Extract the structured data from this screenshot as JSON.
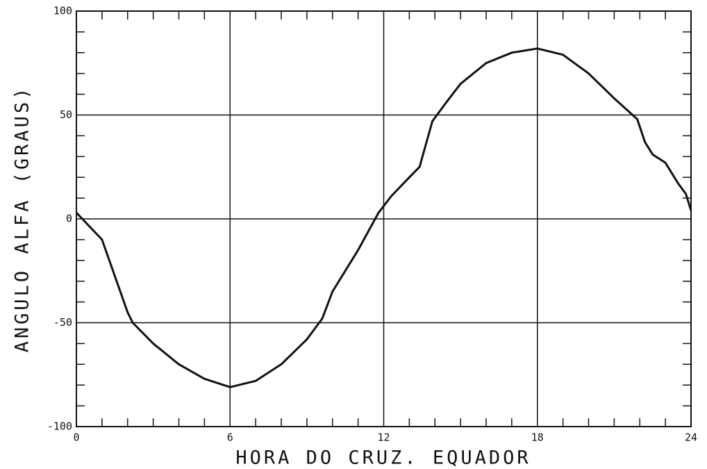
{
  "chart_data": {
    "type": "line",
    "xlabel": "HORA DO CRUZ. EQUADOR",
    "ylabel": "ANGULO ALFA (GRAUS)",
    "xlim": [
      0,
      24
    ],
    "ylim": [
      -100,
      100
    ],
    "xticks": [
      0,
      6,
      12,
      18,
      24
    ],
    "yticks": [
      -100,
      -50,
      0,
      50,
      100
    ],
    "xminorticks": [
      1,
      2,
      3,
      4,
      5,
      7,
      8,
      9,
      10,
      11,
      13,
      14,
      15,
      16,
      17,
      19,
      20,
      21,
      22,
      23
    ],
    "yminorticks": [
      -90,
      -80,
      -70,
      -60,
      -40,
      -30,
      -20,
      -10,
      10,
      20,
      30,
      40,
      60,
      70,
      80,
      90
    ],
    "grid": true,
    "series": [
      {
        "color": "#111111",
        "x": [
          0,
          1,
          2,
          2.2,
          3,
          4,
          5,
          6,
          7,
          8,
          9,
          9.6,
          10,
          11,
          11.8,
          12.3,
          13,
          13.4,
          13.9,
          14.5,
          15,
          16,
          17,
          18,
          19,
          20,
          21,
          21.9,
          22.2,
          22.5,
          23,
          23.5,
          23.8,
          24
        ],
        "values": [
          3,
          -10,
          -45,
          -50,
          -60,
          -70,
          -77,
          -81,
          -78,
          -70,
          -58,
          -48,
          -35,
          -15,
          3,
          11,
          20,
          25,
          47,
          57,
          65,
          75,
          80,
          82,
          79,
          70,
          58,
          48,
          37,
          31,
          27,
          17,
          12,
          4
        ]
      }
    ]
  }
}
